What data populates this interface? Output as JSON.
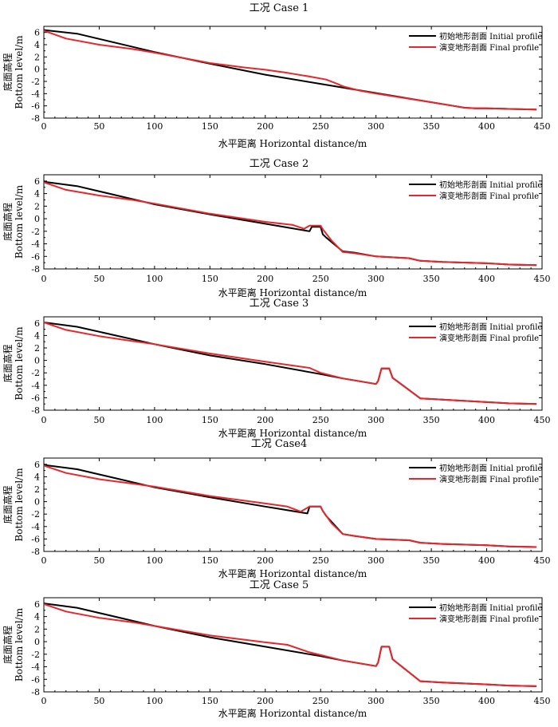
{
  "common": {
    "xlabel": "水平距离 Horizontal distance/m",
    "ylabel_cn": "底面高程",
    "ylabel_en": "Bottom level/m",
    "xticks": [
      "0",
      "50",
      "100",
      "150",
      "200",
      "250",
      "300",
      "350",
      "400",
      "450"
    ],
    "yticks": [
      "-8",
      "-6",
      "-4",
      "-2",
      "0",
      "2",
      "4",
      "6"
    ],
    "legend_initial": "初始地形剖面 Initial profile",
    "legend_final": "演变地形剖面 Final profile",
    "color_initial": "#000000",
    "color_final": "#e8262b"
  },
  "chart_data": [
    {
      "type": "line",
      "title": "工况 Case 1",
      "xlim": [
        0,
        450
      ],
      "ylim": [
        -8,
        7
      ],
      "grid": false,
      "legend": "top-right",
      "series": [
        {
          "name": "初始地形剖面 Initial profile",
          "x": [
            0,
            30,
            100,
            150,
            200,
            250,
            300,
            350,
            370,
            380,
            390,
            400,
            420,
            445
          ],
          "y": [
            6.4,
            5.8,
            2.8,
            0.9,
            -0.9,
            -2.4,
            -3.9,
            -5.4,
            -6.0,
            -6.3,
            -6.4,
            -6.4,
            -6.5,
            -6.6
          ]
        },
        {
          "name": "演变地形剖面 Final profile",
          "x": [
            0,
            20,
            50,
            80,
            100,
            150,
            180,
            200,
            220,
            240,
            255,
            265,
            270,
            285,
            300,
            350,
            370,
            380,
            390,
            400,
            420,
            445
          ],
          "y": [
            6.3,
            5.0,
            4.0,
            3.3,
            2.7,
            1.0,
            0.3,
            -0.1,
            -0.6,
            -1.2,
            -1.7,
            -2.4,
            -2.8,
            -3.5,
            -4.0,
            -5.4,
            -6.0,
            -6.3,
            -6.4,
            -6.4,
            -6.5,
            -6.6
          ]
        }
      ]
    },
    {
      "type": "line",
      "title": "工况 Case 2",
      "xlim": [
        0,
        450
      ],
      "ylim": [
        -8,
        7
      ],
      "grid": false,
      "legend": "top-right",
      "series": [
        {
          "name": "初始地形剖面 Initial profile",
          "x": [
            0,
            30,
            100,
            150,
            200,
            240,
            242,
            250,
            252,
            255,
            270,
            280,
            300,
            330,
            340,
            360,
            400,
            420,
            445
          ],
          "y": [
            5.9,
            5.2,
            2.3,
            0.7,
            -0.8,
            -2.0,
            -1.3,
            -1.3,
            -2.5,
            -3.0,
            -5.2,
            -5.4,
            -6.0,
            -6.3,
            -6.7,
            -6.9,
            -7.1,
            -7.3,
            -7.4
          ]
        },
        {
          "name": "演变地形剖面 Final profile",
          "x": [
            0,
            20,
            50,
            80,
            100,
            150,
            200,
            225,
            235,
            240,
            250,
            252,
            260,
            270,
            280,
            300,
            330,
            340,
            360,
            400,
            420,
            445
          ],
          "y": [
            5.8,
            4.6,
            3.7,
            3.0,
            2.4,
            0.8,
            -0.5,
            -1.0,
            -1.6,
            -1.1,
            -1.1,
            -1.7,
            -3.5,
            -5.3,
            -5.5,
            -6.0,
            -6.3,
            -6.7,
            -6.9,
            -7.1,
            -7.3,
            -7.4
          ]
        }
      ]
    },
    {
      "type": "line",
      "title": "工况 Case 3",
      "xlim": [
        0,
        450
      ],
      "ylim": [
        -8,
        7
      ],
      "grid": false,
      "legend": "top-right",
      "series": [
        {
          "name": "初始地形剖面 Initial profile",
          "x": [
            0,
            30,
            100,
            150,
            200,
            250,
            270,
            300,
            302,
            305,
            308,
            312,
            315,
            340,
            360,
            400,
            420,
            445
          ],
          "y": [
            6.1,
            5.4,
            2.6,
            0.8,
            -0.6,
            -2.2,
            -2.9,
            -3.8,
            -3.3,
            -1.3,
            -1.3,
            -1.3,
            -2.8,
            -6.1,
            -6.3,
            -6.7,
            -6.9,
            -7.0
          ]
        },
        {
          "name": "演变地形剖面 Final profile",
          "x": [
            0,
            20,
            50,
            80,
            100,
            150,
            200,
            240,
            250,
            270,
            300,
            302,
            305,
            308,
            312,
            315,
            340,
            360,
            400,
            420,
            445
          ],
          "y": [
            6.1,
            4.9,
            3.9,
            3.1,
            2.6,
            1.1,
            -0.2,
            -1.2,
            -2.0,
            -2.9,
            -3.8,
            -3.3,
            -1.3,
            -1.3,
            -1.3,
            -2.8,
            -6.1,
            -6.3,
            -6.7,
            -6.9,
            -7.0
          ]
        }
      ]
    },
    {
      "type": "line",
      "title": "工况 Case4",
      "xlim": [
        0,
        450
      ],
      "ylim": [
        -8,
        7
      ],
      "grid": false,
      "legend": "top-right",
      "series": [
        {
          "name": "初始地形剖面 Initial profile",
          "x": [
            0,
            30,
            100,
            150,
            200,
            238,
            240,
            250,
            252,
            255,
            270,
            280,
            300,
            330,
            340,
            360,
            400,
            420,
            445
          ],
          "y": [
            5.9,
            5.2,
            2.3,
            0.7,
            -0.8,
            -1.9,
            -0.8,
            -0.8,
            -1.5,
            -2.3,
            -5.2,
            -5.5,
            -6.0,
            -6.2,
            -6.6,
            -6.8,
            -7.0,
            -7.2,
            -7.3
          ]
        },
        {
          "name": "演变地形剖面 Final profile",
          "x": [
            0,
            20,
            50,
            80,
            100,
            150,
            200,
            220,
            232,
            240,
            250,
            252,
            260,
            270,
            280,
            300,
            330,
            340,
            360,
            400,
            420,
            445
          ],
          "y": [
            5.8,
            4.6,
            3.6,
            2.9,
            2.4,
            0.9,
            -0.3,
            -0.8,
            -1.6,
            -0.8,
            -0.8,
            -1.5,
            -3.5,
            -5.2,
            -5.5,
            -6.0,
            -6.2,
            -6.6,
            -6.8,
            -7.0,
            -7.2,
            -7.3
          ]
        }
      ]
    },
    {
      "type": "line",
      "title": "工况 Case 5",
      "xlim": [
        0,
        450
      ],
      "ylim": [
        -8,
        7
      ],
      "grid": false,
      "legend": "top-right",
      "series": [
        {
          "name": "初始地形剖面 Initial profile",
          "x": [
            0,
            30,
            100,
            150,
            200,
            250,
            270,
            300,
            302,
            305,
            308,
            312,
            315,
            340,
            360,
            400,
            420,
            445
          ],
          "y": [
            6.1,
            5.4,
            2.5,
            0.7,
            -0.8,
            -2.3,
            -3.0,
            -3.9,
            -3.3,
            -0.8,
            -0.8,
            -0.8,
            -2.8,
            -6.3,
            -6.5,
            -6.8,
            -7.0,
            -7.1
          ]
        },
        {
          "name": "演变地形剖面 Final profile",
          "x": [
            0,
            20,
            50,
            80,
            100,
            150,
            200,
            220,
            240,
            270,
            300,
            302,
            305,
            308,
            312,
            315,
            340,
            360,
            400,
            420,
            445
          ],
          "y": [
            6.0,
            4.8,
            3.8,
            3.1,
            2.5,
            1.0,
            -0.1,
            -0.5,
            -1.7,
            -3.0,
            -3.9,
            -3.3,
            -0.8,
            -0.8,
            -0.8,
            -2.8,
            -6.3,
            -6.5,
            -6.8,
            -7.0,
            -7.1
          ]
        }
      ]
    }
  ]
}
